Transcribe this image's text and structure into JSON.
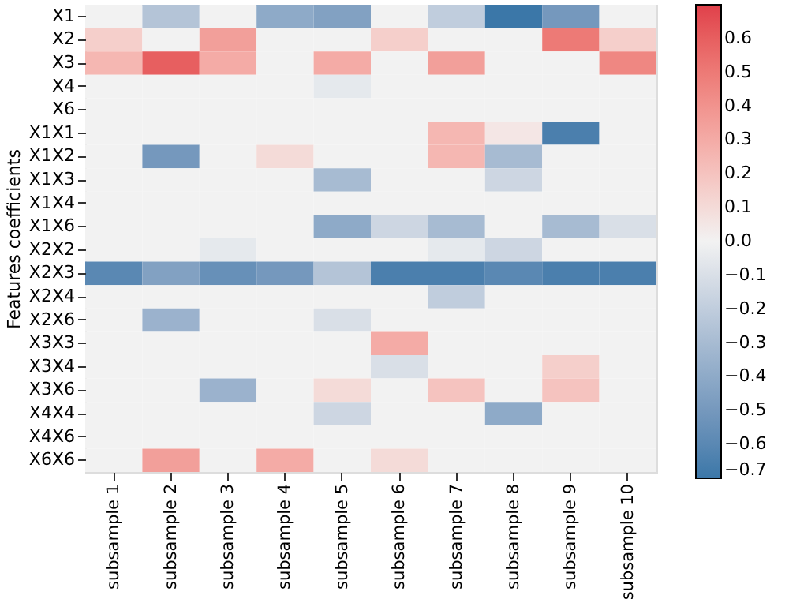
{
  "chart_data": {
    "type": "heatmap",
    "ylabel": "Features coefficients",
    "categories": [
      "subsample 1",
      "subsample 2",
      "subsample 3",
      "subsample 4",
      "subsample 5",
      "subsample 6",
      "subsample 7",
      "subsample 8",
      "subsample 9",
      "subsample 10"
    ],
    "y_categories": [
      "X1",
      "X2",
      "X3",
      "X4",
      "X6",
      "X1X1",
      "X1X2",
      "X1X3",
      "X1X4",
      "X1X6",
      "X2X2",
      "X2X3",
      "X2X4",
      "X2X6",
      "X3X3",
      "X3X4",
      "X3X6",
      "X4X4",
      "X4X6",
      "X6X6"
    ],
    "cells": [
      [
        0,
        -0.25,
        0,
        -0.4,
        -0.45,
        0,
        -0.2,
        -0.7,
        -0.5,
        0
      ],
      [
        0.15,
        0,
        0.35,
        0,
        0,
        0.15,
        0,
        0,
        0.5,
        0.15
      ],
      [
        0.25,
        0.6,
        0.3,
        0,
        0.3,
        0,
        0.35,
        0,
        0,
        0.45
      ],
      [
        0,
        0,
        0,
        0,
        -0.05,
        0,
        0,
        0,
        0,
        0
      ],
      [
        0,
        0,
        0,
        0,
        0,
        0,
        0,
        0,
        0,
        0
      ],
      [
        0,
        0,
        0,
        0,
        0,
        0,
        0.25,
        0.05,
        -0.65,
        0
      ],
      [
        0,
        -0.5,
        0,
        0.1,
        0,
        0,
        0.25,
        -0.3,
        0,
        0
      ],
      [
        0,
        0,
        0,
        0,
        -0.3,
        0,
        0,
        -0.15,
        0,
        0
      ],
      [
        0,
        0,
        0,
        0,
        0,
        0,
        0,
        0,
        0,
        0
      ],
      [
        0,
        0,
        0,
        0,
        -0.4,
        -0.15,
        -0.3,
        0,
        -0.3,
        -0.1
      ],
      [
        0,
        0,
        -0.05,
        0,
        0,
        0,
        -0.05,
        -0.15,
        0,
        0
      ],
      [
        -0.6,
        -0.45,
        -0.55,
        -0.5,
        -0.25,
        -0.65,
        -0.65,
        -0.6,
        -0.65,
        -0.65
      ],
      [
        0,
        0,
        0,
        0,
        0,
        0,
        -0.2,
        0,
        0,
        0
      ],
      [
        0,
        -0.35,
        0,
        0,
        -0.1,
        0,
        0,
        0,
        0,
        0
      ],
      [
        0,
        0,
        0,
        0,
        0,
        0.3,
        0,
        0,
        0,
        0
      ],
      [
        0,
        0,
        0,
        0,
        0,
        -0.1,
        0,
        0,
        0.15,
        0
      ],
      [
        0,
        0,
        -0.35,
        0,
        0.1,
        0,
        0.2,
        0,
        0.2,
        0
      ],
      [
        0,
        0,
        0,
        0,
        -0.15,
        0,
        0,
        -0.4,
        0,
        0
      ],
      [
        0,
        0,
        0,
        0,
        0,
        0,
        0,
        0,
        0,
        0
      ],
      [
        0,
        0.35,
        0,
        0.3,
        0,
        0.1,
        0,
        0,
        0,
        0
      ]
    ],
    "clim": [
      -0.7,
      0.7
    ],
    "cticks": [
      0.6,
      0.5,
      0.4,
      0.3,
      0.2,
      0.1,
      {
        "value": 0,
        "label": "0.0"
      },
      -0.1,
      -0.2,
      -0.3,
      -0.4,
      -0.5,
      -0.6,
      -0.7
    ]
  }
}
